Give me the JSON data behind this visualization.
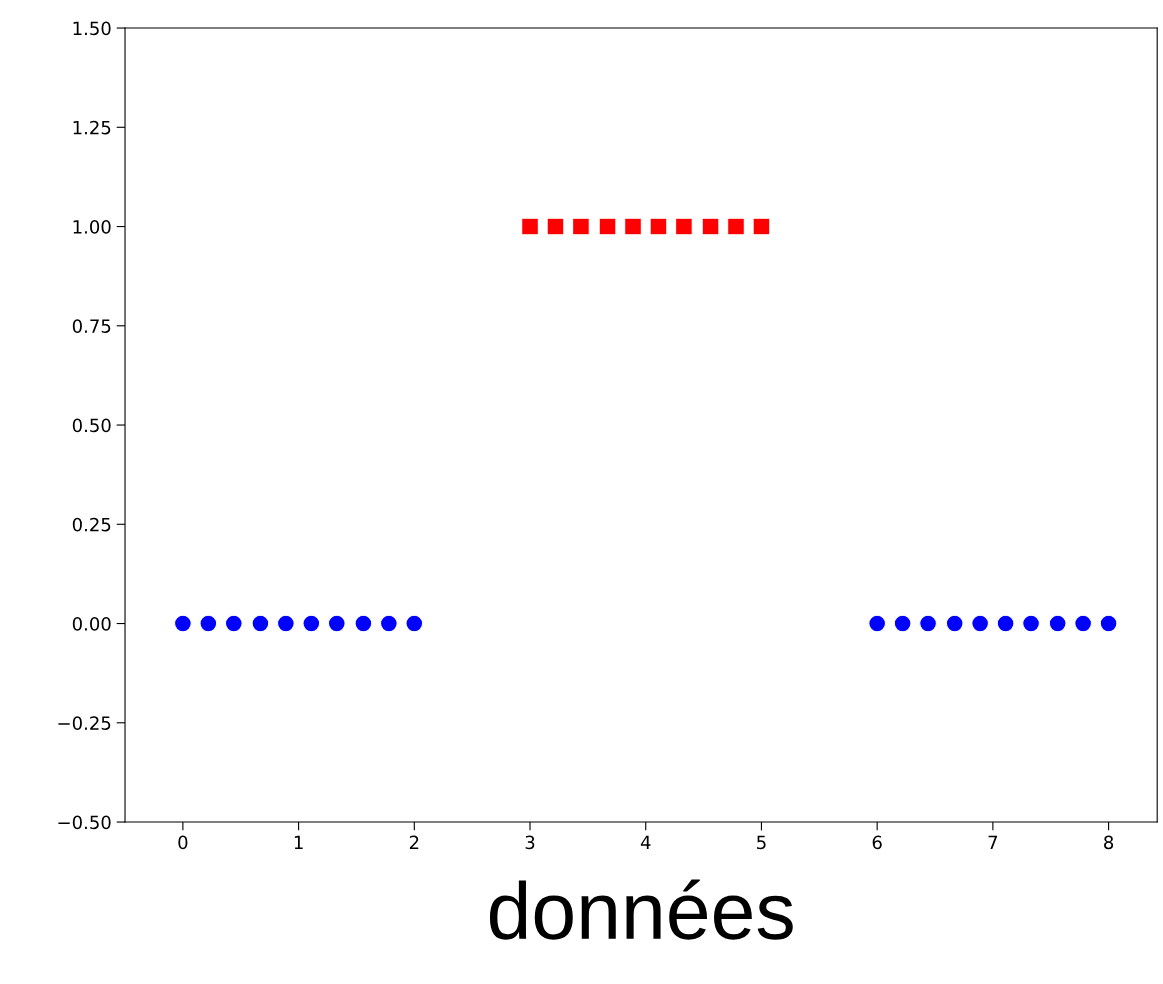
{
  "chart_data": {
    "type": "scatter",
    "xlabel": "données",
    "series": [
      {
        "color": "#0000ff",
        "marker": "circle",
        "x": [
          0,
          0.22,
          0.44,
          0.67,
          0.89,
          1.11,
          1.33,
          1.56,
          1.78,
          2
        ],
        "values": [
          0,
          0,
          0,
          0,
          0,
          0,
          0,
          0,
          0,
          0
        ]
      },
      {
        "color": "#ff0000",
        "marker": "square",
        "x": [
          3,
          3.22,
          3.44,
          3.67,
          3.89,
          4.11,
          4.33,
          4.56,
          4.78,
          5
        ],
        "values": [
          1,
          1,
          1,
          1,
          1,
          1,
          1,
          1,
          1,
          1
        ]
      },
      {
        "color": "#0000ff",
        "marker": "circle",
        "x": [
          6,
          6.22,
          6.44,
          6.67,
          6.89,
          7.11,
          7.33,
          7.56,
          7.78,
          8
        ],
        "values": [
          0,
          0,
          0,
          0,
          0,
          0,
          0,
          0,
          0,
          0
        ]
      }
    ],
    "xlim": [
      -0.5,
      8.42
    ],
    "xticks": [
      0,
      1,
      2,
      3,
      4,
      5,
      6,
      7,
      8
    ],
    "ylim": [
      -0.5,
      1.5
    ],
    "yticks": [
      {
        "value": -0.5,
        "label": "−0.50"
      },
      {
        "value": -0.25,
        "label": "−0.25"
      },
      {
        "value": 0,
        "label": "0.00"
      },
      {
        "value": 0.25,
        "label": "0.25"
      },
      {
        "value": 0.5,
        "label": "0.50"
      },
      {
        "value": 0.75,
        "label": "0.75"
      },
      {
        "value": 1,
        "label": "1.00"
      },
      {
        "value": 1.25,
        "label": "1.25"
      },
      {
        "value": 1.5,
        "label": "1.50"
      }
    ],
    "grid": false,
    "legend": false
  }
}
